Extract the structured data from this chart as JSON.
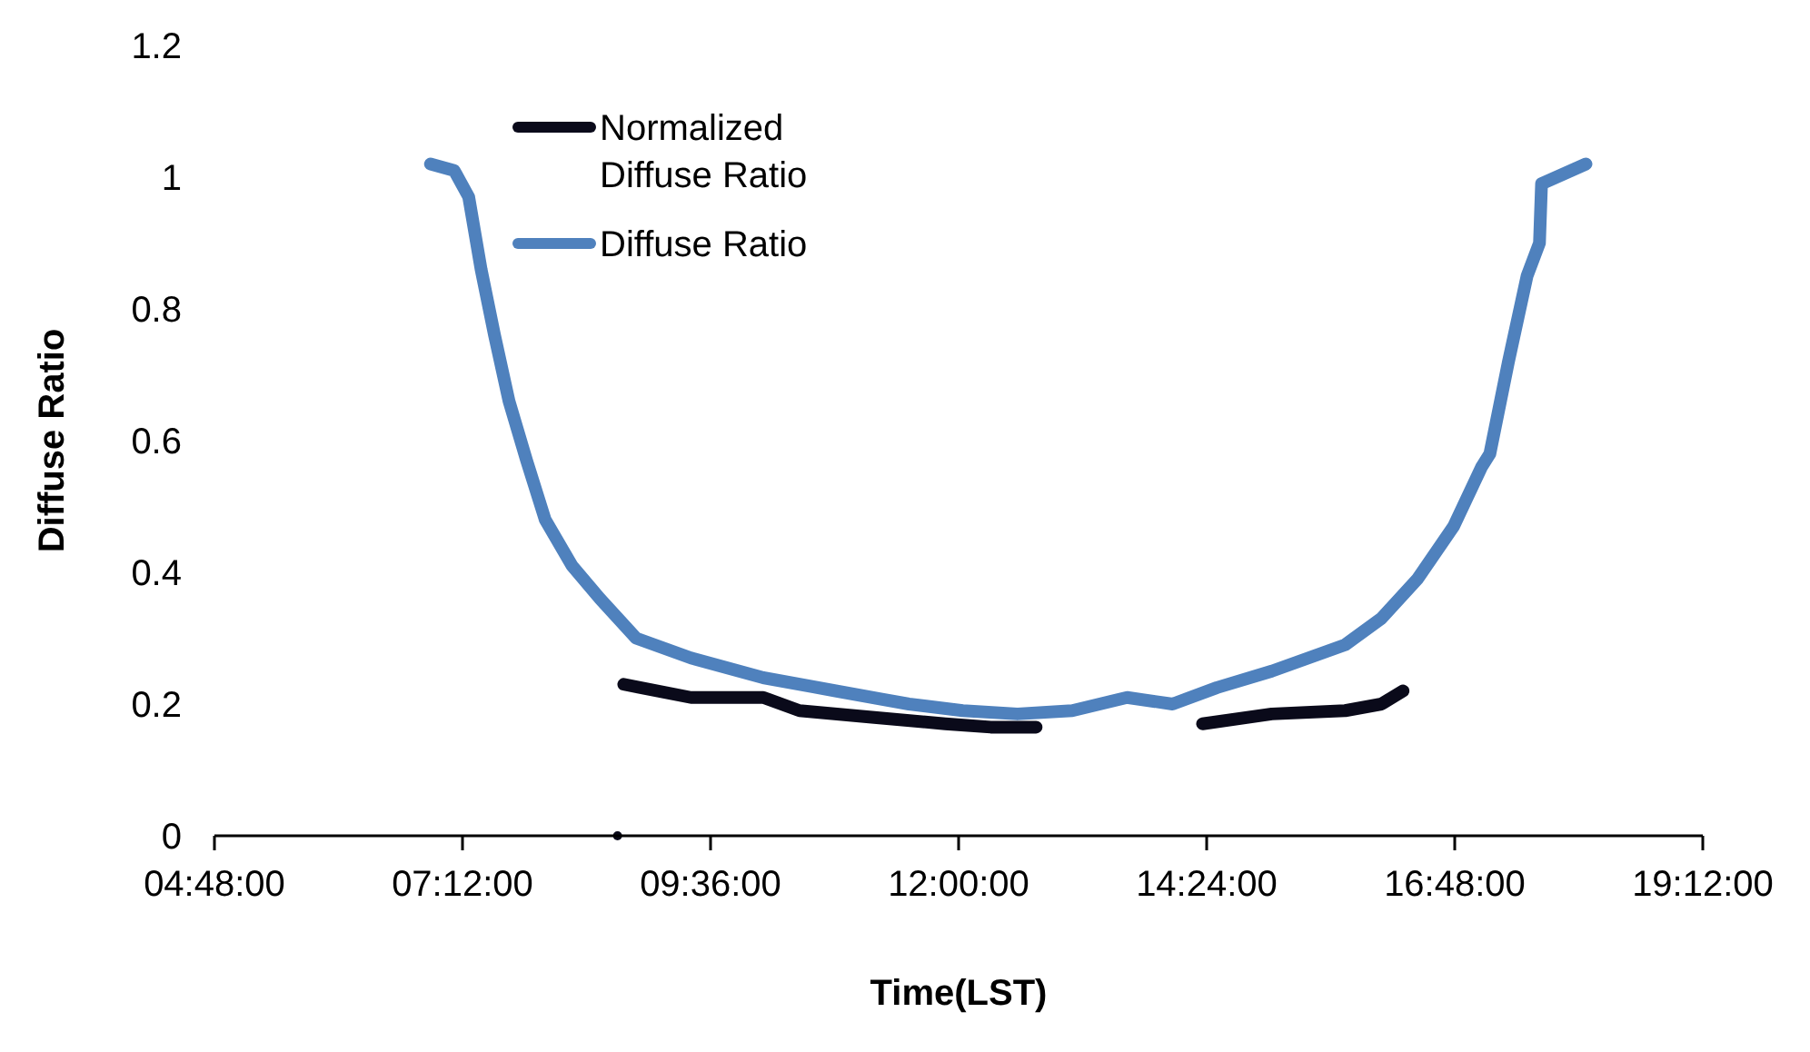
{
  "chart_data": {
    "type": "line",
    "xlabel": "Time(LST)",
    "ylabel": "Diffuse Ratio",
    "xlim": [
      4.8,
      19.2
    ],
    "ylim": [
      0,
      1.2
    ],
    "xticks": [
      {
        "value": 4.8,
        "label": "04:48:00"
      },
      {
        "value": 7.2,
        "label": "07:12:00"
      },
      {
        "value": 9.6,
        "label": "09:36:00"
      },
      {
        "value": 12,
        "label": "12:00:00"
      },
      {
        "value": 14.4,
        "label": "14:24:00"
      },
      {
        "value": 16.8,
        "label": "16:48:00"
      },
      {
        "value": 19.2,
        "label": "19:12:00"
      }
    ],
    "yticks": [
      0,
      0.2,
      0.4,
      0.6,
      0.8,
      1,
      1.2
    ],
    "grid": false,
    "legend": "top",
    "marker": "none",
    "line_style": "solid",
    "series": [
      {
        "name": "Normalized Diffuse Ratio",
        "color": "#0a0a1a",
        "x": [
          8.76,
          9.41,
          10.11,
          10.46,
          11.16,
          11.87,
          12.31,
          12.75
        ],
        "values": [
          0.23,
          0.21,
          0.21,
          0.19,
          0.18,
          0.17,
          0.165,
          0.165
        ]
      },
      {
        "color": "#0a0a1a",
        "x": [
          14.36,
          15.03,
          15.74,
          16.09,
          16.3
        ],
        "values": [
          0.17,
          0.185,
          0.19,
          0.2,
          0.22
        ]
      },
      {
        "type": "scatter",
        "marker": "circle",
        "color": "#0a0a1a",
        "x": [
          8.7
        ],
        "values": [
          0
        ]
      },
      {
        "name": "Diffuse Ratio",
        "color": "#4f81bd",
        "x": [
          6.89,
          7.12,
          7.26,
          7.38,
          7.51,
          7.65,
          7.82,
          8.0,
          8.26,
          8.53,
          8.88,
          9.41,
          10.11,
          10.81,
          11.52,
          12.04,
          12.57,
          13.1,
          13.63,
          14.07,
          14.5,
          15.03,
          15.74,
          16.09,
          16.44,
          16.79,
          17.06,
          17.14,
          17.32,
          17.5,
          17.62,
          17.64,
          18.07
        ],
        "values": [
          1.02,
          1.01,
          0.97,
          0.86,
          0.76,
          0.66,
          0.57,
          0.48,
          0.41,
          0.36,
          0.3,
          0.27,
          0.24,
          0.22,
          0.2,
          0.19,
          0.185,
          0.19,
          0.21,
          0.2,
          0.225,
          0.25,
          0.29,
          0.33,
          0.39,
          0.47,
          0.56,
          0.58,
          0.72,
          0.85,
          0.9,
          0.99,
          1.02
        ]
      }
    ]
  }
}
